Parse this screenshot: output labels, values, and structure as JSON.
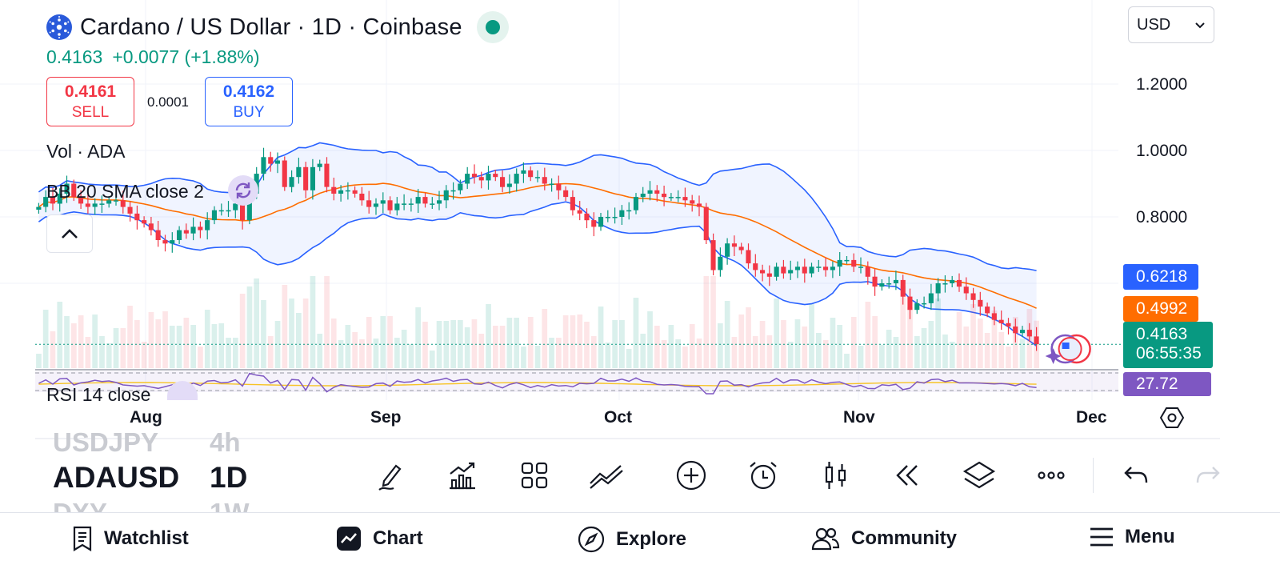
{
  "header": {
    "title": "Cardano / US Dollar · 1D · Coinbase",
    "last_price": "0.4163",
    "change": "+0.0077",
    "change_pct": "(+1.88%)"
  },
  "trade": {
    "sell_price": "0.4161",
    "sell_label": "SELL",
    "spread": "0.0001",
    "buy_price": "0.4162",
    "buy_label": "BUY"
  },
  "currency": {
    "selected": "USD"
  },
  "indicators": {
    "volume": "Vol · ADA",
    "bollinger": "BB 20 SMA close 2",
    "rsi": "RSI 14 close"
  },
  "price_scale": [
    "1.2000",
    "1.0000",
    "0.8000"
  ],
  "badges": {
    "bb_upper": "0.6218",
    "bb_basis": "0.4992",
    "last_price": "0.4163",
    "countdown": "06:55:35",
    "rsi": "27.72"
  },
  "time_axis": [
    "Aug",
    "Sep",
    "Oct",
    "Nov",
    "Dec"
  ],
  "symbol_picker": {
    "above": {
      "symbol": "USDJPY",
      "interval": "4h"
    },
    "current": {
      "symbol": "ADAUSD",
      "interval": "1D"
    },
    "below": {
      "symbol": "DXY",
      "interval": "1W"
    }
  },
  "toolbar": [
    "draw-icon",
    "indicators-icon",
    "layout-icon",
    "compare-icon",
    "add-icon",
    "alert-icon",
    "chart-style-icon",
    "replay-icon",
    "layers-icon",
    "more-icon",
    "undo-icon",
    "redo-icon"
  ],
  "nav": {
    "watchlist": "Watchlist",
    "chart": "Chart",
    "explore": "Explore",
    "community": "Community",
    "menu": "Menu"
  },
  "colors": {
    "up": "#089981",
    "down": "#f23645",
    "bb_band": "#2962ff",
    "bb_basis": "#ff6d00",
    "rsi": "#7e57c2",
    "accent_blue": "#2962ff"
  },
  "chart_data": {
    "type": "candlestick",
    "symbol": "ADAUSD",
    "interval": "1D",
    "price_axis_ticks": [
      0.8,
      1.0,
      1.2
    ],
    "time_axis_labels": [
      "Aug",
      "Sep",
      "Oct",
      "Nov",
      "Dec"
    ],
    "series": [
      {
        "name": "BB 20 SMA close 2",
        "upper_last": 0.6218,
        "basis_last": 0.4992
      },
      {
        "name": "RSI 14 close",
        "last": 27.72
      }
    ],
    "last_close": 0.4163,
    "change": 0.0077,
    "change_pct": 1.88,
    "closes": [
      0.83,
      0.86,
      0.84,
      0.87,
      0.9,
      0.86,
      0.84,
      0.83,
      0.84,
      0.84,
      0.85,
      0.85,
      0.83,
      0.81,
      0.79,
      0.78,
      0.76,
      0.73,
      0.72,
      0.73,
      0.76,
      0.75,
      0.77,
      0.76,
      0.79,
      0.82,
      0.82,
      0.82,
      0.84,
      0.79,
      0.87,
      0.93,
      0.98,
      0.96,
      0.97,
      0.89,
      0.92,
      0.95,
      0.88,
      0.95,
      0.96,
      0.89,
      0.87,
      0.88,
      0.88,
      0.87,
      0.85,
      0.83,
      0.84,
      0.85,
      0.82,
      0.84,
      0.84,
      0.84,
      0.86,
      0.84,
      0.84,
      0.85,
      0.88,
      0.88,
      0.9,
      0.93,
      0.92,
      0.91,
      0.93,
      0.92,
      0.89,
      0.9,
      0.93,
      0.94,
      0.92,
      0.92,
      0.9,
      0.9,
      0.88,
      0.86,
      0.82,
      0.81,
      0.79,
      0.77,
      0.8,
      0.8,
      0.8,
      0.82,
      0.82,
      0.86,
      0.87,
      0.88,
      0.87,
      0.86,
      0.86,
      0.86,
      0.85,
      0.84,
      0.83,
      0.73,
      0.64,
      0.68,
      0.72,
      0.71,
      0.7,
      0.66,
      0.64,
      0.63,
      0.62,
      0.65,
      0.63,
      0.64,
      0.65,
      0.63,
      0.65,
      0.65,
      0.64,
      0.65,
      0.67,
      0.67,
      0.65,
      0.65,
      0.62,
      0.59,
      0.6,
      0.6,
      0.61,
      0.56,
      0.52,
      0.54,
      0.54,
      0.57,
      0.6,
      0.6,
      0.61,
      0.59,
      0.57,
      0.55,
      0.53,
      0.51,
      0.49,
      0.48,
      0.47,
      0.45,
      0.46,
      0.44,
      0.4163
    ]
  }
}
